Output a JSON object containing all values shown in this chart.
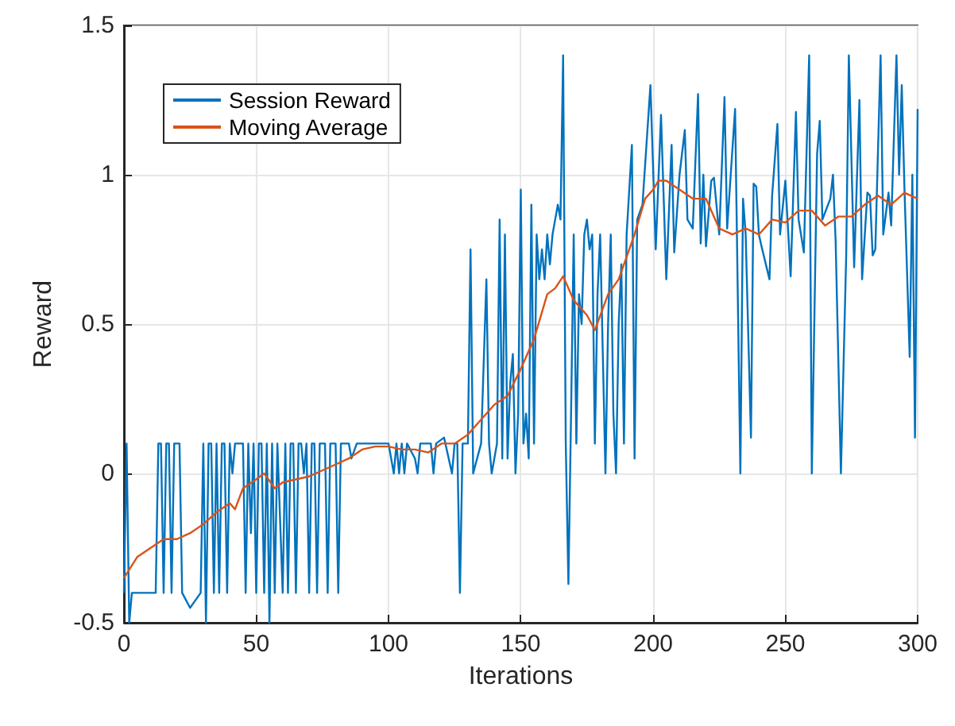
{
  "chart_data": {
    "type": "line",
    "xlabel": "Iterations",
    "ylabel": "Reward",
    "xlim": [
      0,
      300
    ],
    "xticks": [
      0,
      50,
      100,
      150,
      200,
      250,
      300
    ],
    "ylim": [
      -0.5,
      1.5
    ],
    "yticks": [
      -0.5,
      0,
      0.5,
      1,
      1.5
    ],
    "grid": true,
    "legend": "top left",
    "marker": "none",
    "line_style": "solid",
    "series": [
      {
        "name": "Session Reward",
        "color": "#0072bd",
        "x": [
          0,
          1,
          2,
          3,
          6,
          12,
          13,
          14,
          15,
          16,
          17,
          18,
          19,
          21,
          22,
          25,
          29,
          30,
          31,
          32,
          33,
          34,
          35,
          36,
          37,
          38,
          39,
          40,
          41,
          42,
          45,
          46,
          47,
          48,
          49,
          50,
          51,
          52,
          53,
          54,
          55,
          56,
          57,
          58,
          60,
          61,
          62,
          63,
          64,
          65,
          66,
          67,
          68,
          69,
          70,
          71,
          72,
          73,
          74,
          76,
          77,
          78,
          80,
          81,
          82,
          85,
          86,
          88,
          100,
          102,
          103,
          104,
          105,
          106,
          107,
          110,
          111,
          112,
          116,
          117,
          118,
          121,
          124,
          125,
          126,
          127,
          128,
          130,
          131,
          132,
          135,
          137,
          138,
          139,
          141,
          142,
          143,
          144,
          145,
          146,
          147,
          148,
          149,
          150,
          151,
          152,
          153,
          154,
          155,
          156,
          157,
          158,
          159,
          160,
          161,
          162,
          163,
          164,
          165,
          166,
          167,
          168,
          169,
          170,
          171,
          172,
          173,
          174,
          175,
          176,
          177,
          178,
          179,
          180,
          182,
          183,
          184,
          185,
          186,
          187,
          188,
          189,
          190,
          192,
          193,
          194,
          196,
          199,
          201,
          203,
          205,
          207,
          208,
          210,
          212,
          213,
          215,
          217,
          218,
          219,
          220,
          222,
          223,
          225,
          227,
          228,
          231,
          233,
          234,
          235,
          237,
          238,
          239,
          240,
          241,
          244,
          245,
          247,
          248,
          250,
          252,
          254,
          255,
          257,
          259,
          260,
          262,
          263,
          264,
          267,
          268,
          269,
          271,
          273,
          274,
          276,
          278,
          279,
          281,
          282,
          283,
          284,
          286,
          287,
          289,
          290,
          292,
          293,
          294,
          295,
          297,
          298,
          299,
          300
        ],
        "values": [
          -0.4,
          0.1,
          -0.5,
          -0.4,
          -0.4,
          -0.4,
          0.1,
          0.1,
          -0.4,
          0.1,
          0.1,
          -0.4,
          0.1,
          0.1,
          -0.4,
          -0.45,
          -0.4,
          0.1,
          -0.5,
          0.1,
          0.1,
          -0.4,
          0.1,
          -0.4,
          0.1,
          0.1,
          -0.4,
          0.1,
          0.0,
          0.1,
          0.1,
          -0.4,
          0.1,
          -0.2,
          0.1,
          -0.4,
          0.1,
          0.1,
          -0.4,
          0.1,
          -0.5,
          0.1,
          -0.4,
          0.1,
          -0.4,
          0.1,
          -0.4,
          0.1,
          0.1,
          -0.4,
          0.1,
          0.1,
          0.0,
          0.1,
          -0.4,
          0.1,
          0.1,
          -0.4,
          0.1,
          0.1,
          -0.4,
          0.1,
          0.1,
          -0.4,
          0.1,
          0.1,
          0.05,
          0.1,
          0.1,
          0.0,
          0.1,
          0.0,
          0.1,
          0.0,
          0.1,
          0.05,
          0.0,
          0.1,
          0.1,
          0.0,
          0.1,
          0.12,
          0.0,
          0.1,
          0.1,
          -0.4,
          0.1,
          0.1,
          0.75,
          0.0,
          0.1,
          0.65,
          0.1,
          0.0,
          0.1,
          0.85,
          0.05,
          0.8,
          0.05,
          0.3,
          0.4,
          0.0,
          0.2,
          0.95,
          0.1,
          0.2,
          0.05,
          0.9,
          0.1,
          0.8,
          0.65,
          0.75,
          0.65,
          0.8,
          0.7,
          0.8,
          0.85,
          0.9,
          0.85,
          1.4,
          0.1,
          -0.37,
          0.2,
          0.8,
          0.1,
          0.6,
          0.5,
          0.8,
          0.85,
          0.75,
          0.8,
          0.1,
          0.6,
          0.8,
          0.0,
          0.5,
          0.8,
          0.2,
          0.0,
          0.5,
          0.7,
          0.1,
          0.8,
          1.1,
          0.05,
          0.85,
          0.9,
          1.3,
          0.75,
          1.2,
          0.65,
          1.1,
          0.74,
          1.0,
          1.15,
          0.85,
          0.82,
          1.27,
          0.77,
          1.0,
          0.76,
          0.98,
          0.99,
          0.8,
          1.26,
          0.82,
          1.22,
          0.0,
          0.92,
          0.8,
          0.12,
          0.97,
          0.96,
          0.8,
          0.76,
          0.65,
          0.93,
          1.17,
          0.8,
          0.98,
          0.66,
          1.21,
          0.85,
          0.74,
          1.4,
          0.0,
          1.07,
          1.18,
          0.85,
          0.92,
          1.0,
          0.78,
          0.0,
          0.73,
          1.4,
          0.69,
          1.25,
          0.65,
          0.94,
          0.93,
          0.73,
          0.75,
          1.4,
          0.8,
          0.94,
          0.83,
          1.4,
          1.0,
          1.3,
          0.96,
          0.39,
          1.0,
          0.12,
          1.22
        ]
      },
      {
        "name": "Moving Average",
        "color": "#d95319",
        "x": [
          0,
          5,
          10,
          15,
          20,
          25,
          30,
          35,
          40,
          42,
          45,
          50,
          53,
          57,
          60,
          65,
          70,
          75,
          80,
          85,
          90,
          95,
          100,
          105,
          110,
          115,
          120,
          125,
          130,
          135,
          140,
          145,
          150,
          155,
          160,
          163,
          166,
          170,
          175,
          178,
          183,
          187,
          193,
          197,
          200,
          202,
          205,
          210,
          215,
          220,
          225,
          230,
          235,
          240,
          245,
          250,
          255,
          260,
          265,
          270,
          275,
          280,
          285,
          290,
          295,
          300
        ],
        "values": [
          -0.35,
          -0.28,
          -0.25,
          -0.22,
          -0.22,
          -0.2,
          -0.17,
          -0.13,
          -0.1,
          -0.12,
          -0.05,
          -0.02,
          0.0,
          -0.05,
          -0.03,
          -0.02,
          -0.01,
          0.01,
          0.03,
          0.05,
          0.08,
          0.09,
          0.09,
          0.08,
          0.08,
          0.07,
          0.1,
          0.1,
          0.13,
          0.18,
          0.23,
          0.26,
          0.35,
          0.45,
          0.6,
          0.62,
          0.66,
          0.58,
          0.53,
          0.48,
          0.6,
          0.65,
          0.8,
          0.92,
          0.95,
          0.98,
          0.98,
          0.95,
          0.92,
          0.92,
          0.82,
          0.8,
          0.82,
          0.8,
          0.85,
          0.84,
          0.88,
          0.88,
          0.83,
          0.86,
          0.86,
          0.9,
          0.93,
          0.9,
          0.94,
          0.92
        ]
      }
    ]
  }
}
